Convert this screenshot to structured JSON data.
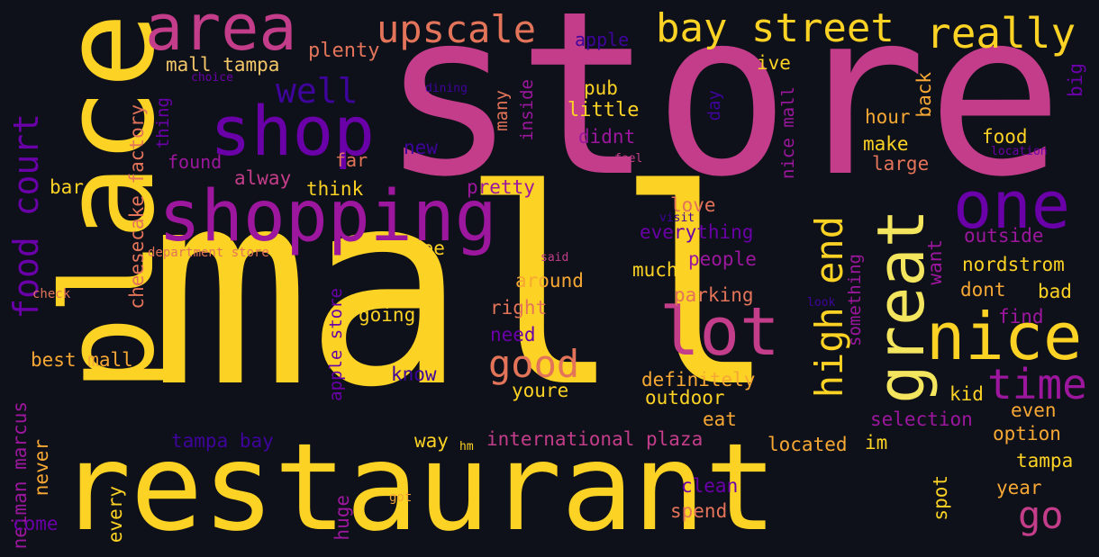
{
  "palette": {
    "background": "#0e1119",
    "yellow": "#fcd225",
    "magenta": "#c33d8a",
    "orange": "#e3745a",
    "purple": "#6a00a8",
    "violet": "#9c179e",
    "indigo": "#3e049c",
    "amber": "#f7a834"
  },
  "words": [
    {
      "text": "mall",
      "color": "#fcd225"
    },
    {
      "text": "store",
      "color": "#c33d8a"
    },
    {
      "text": "restaurant",
      "color": "#fcd225"
    },
    {
      "text": "place",
      "color": "#fcd225"
    },
    {
      "text": "shopping",
      "color": "#9c179e"
    },
    {
      "text": "shop",
      "color": "#6a00a8"
    },
    {
      "text": "area",
      "color": "#c33d8a"
    },
    {
      "text": "great",
      "color": "#f3e55d"
    },
    {
      "text": "lot",
      "color": "#c33d8a"
    },
    {
      "text": "nice",
      "color": "#fcd225"
    },
    {
      "text": "one",
      "color": "#6a00a8"
    },
    {
      "text": "bay street",
      "color": "#fcd225"
    },
    {
      "text": "really",
      "color": "#fcd225"
    },
    {
      "text": "upscale",
      "color": "#e3745a"
    },
    {
      "text": "time",
      "color": "#9c179e"
    },
    {
      "text": "high end",
      "color": "#fcd225"
    },
    {
      "text": "good",
      "color": "#e3745a"
    },
    {
      "text": "go",
      "color": "#c33d8a"
    },
    {
      "text": "food court",
      "color": "#6a00a8"
    },
    {
      "text": "well",
      "color": "#3e049c"
    },
    {
      "text": "mall tampa",
      "color": "#f3c66a"
    },
    {
      "text": "plenty",
      "color": "#e3745a"
    },
    {
      "text": "apple",
      "color": "#3e049c"
    },
    {
      "text": "choice",
      "color": "#6a00a8"
    },
    {
      "text": "dining",
      "color": "#3e049c"
    },
    {
      "text": "thing",
      "color": "#6a00a8"
    },
    {
      "text": "cheesecake factory",
      "color": "#e3745a"
    },
    {
      "text": "found",
      "color": "#9c179e"
    },
    {
      "text": "far",
      "color": "#e3745a"
    },
    {
      "text": "alway",
      "color": "#c33d8a"
    },
    {
      "text": "think",
      "color": "#fcd225"
    },
    {
      "text": "bar",
      "color": "#fcd225"
    },
    {
      "text": "department store",
      "color": "#e3745a"
    },
    {
      "text": "check",
      "color": "#e3745a"
    },
    {
      "text": "pub",
      "color": "#fcd225"
    },
    {
      "text": "little",
      "color": "#fcd225"
    },
    {
      "text": "didnt",
      "color": "#9c179e"
    },
    {
      "text": "many",
      "color": "#e3745a"
    },
    {
      "text": "inside",
      "color": "#9c179e"
    },
    {
      "text": "new",
      "color": "#3e049c"
    },
    {
      "text": "pretty",
      "color": "#9c179e"
    },
    {
      "text": "see",
      "color": "#fcd225"
    },
    {
      "text": "ive",
      "color": "#fcd225"
    },
    {
      "text": "day",
      "color": "#3e049c"
    },
    {
      "text": "nice mall",
      "color": "#9c179e"
    },
    {
      "text": "feel",
      "color": "#c33d8a"
    },
    {
      "text": "love",
      "color": "#e3745a"
    },
    {
      "text": "everything",
      "color": "#6a00a8"
    },
    {
      "text": "visit",
      "color": "#3e049c"
    },
    {
      "text": "people",
      "color": "#9c179e"
    },
    {
      "text": "much",
      "color": "#fcd225"
    },
    {
      "text": "around",
      "color": "#f7a834"
    },
    {
      "text": "said",
      "color": "#c33d8a"
    },
    {
      "text": "parking",
      "color": "#e3745a"
    },
    {
      "text": "right",
      "color": "#e3745a"
    },
    {
      "text": "going",
      "color": "#fcd225"
    },
    {
      "text": "need",
      "color": "#6a00a8"
    },
    {
      "text": "best mall",
      "color": "#f7a834"
    },
    {
      "text": "know",
      "color": "#3e049c"
    },
    {
      "text": "definitely",
      "color": "#f7a834"
    },
    {
      "text": "youre",
      "color": "#fcd225"
    },
    {
      "text": "outdoor",
      "color": "#fcd225"
    },
    {
      "text": "eat",
      "color": "#f7a834"
    },
    {
      "text": "neiman marcus",
      "color": "#9c179e"
    },
    {
      "text": "apple store",
      "color": "#6a00a8"
    },
    {
      "text": "tampa bay",
      "color": "#3e049c"
    },
    {
      "text": "never",
      "color": "#f7a834"
    },
    {
      "text": "way",
      "color": "#fcd225"
    },
    {
      "text": "hm",
      "color": "#fcd225"
    },
    {
      "text": "international plaza",
      "color": "#c33d8a"
    },
    {
      "text": "located",
      "color": "#f7a834"
    },
    {
      "text": "im",
      "color": "#fcd225"
    },
    {
      "text": "come",
      "color": "#6a00a8"
    },
    {
      "text": "every",
      "color": "#fcd225"
    },
    {
      "text": "huge",
      "color": "#9c179e"
    },
    {
      "text": "got",
      "color": "#f7a834"
    },
    {
      "text": "clean",
      "color": "#6a00a8"
    },
    {
      "text": "spend",
      "color": "#e3745a"
    },
    {
      "text": "spot",
      "color": "#fcd225"
    },
    {
      "text": "hour",
      "color": "#f7a834"
    },
    {
      "text": "make",
      "color": "#fcd225"
    },
    {
      "text": "large",
      "color": "#e3745a"
    },
    {
      "text": "back",
      "color": "#f7a834"
    },
    {
      "text": "food",
      "color": "#fcd225"
    },
    {
      "text": "big",
      "color": "#6a00a8"
    },
    {
      "text": "location",
      "color": "#6a00a8"
    },
    {
      "text": "outside",
      "color": "#9c179e"
    },
    {
      "text": "nordstrom",
      "color": "#fcd225"
    },
    {
      "text": "dont",
      "color": "#f7a834"
    },
    {
      "text": "bad",
      "color": "#fcd225"
    },
    {
      "text": "want",
      "color": "#9c179e"
    },
    {
      "text": "something",
      "color": "#9c179e"
    },
    {
      "text": "look",
      "color": "#3e049c"
    },
    {
      "text": "find",
      "color": "#9c179e"
    },
    {
      "text": "kid",
      "color": "#fcd225"
    },
    {
      "text": "even",
      "color": "#f7a834"
    },
    {
      "text": "selection",
      "color": "#9c179e"
    },
    {
      "text": "option",
      "color": "#f7a834"
    },
    {
      "text": "tampa",
      "color": "#fcd225"
    },
    {
      "text": "year",
      "color": "#f7a834"
    }
  ]
}
